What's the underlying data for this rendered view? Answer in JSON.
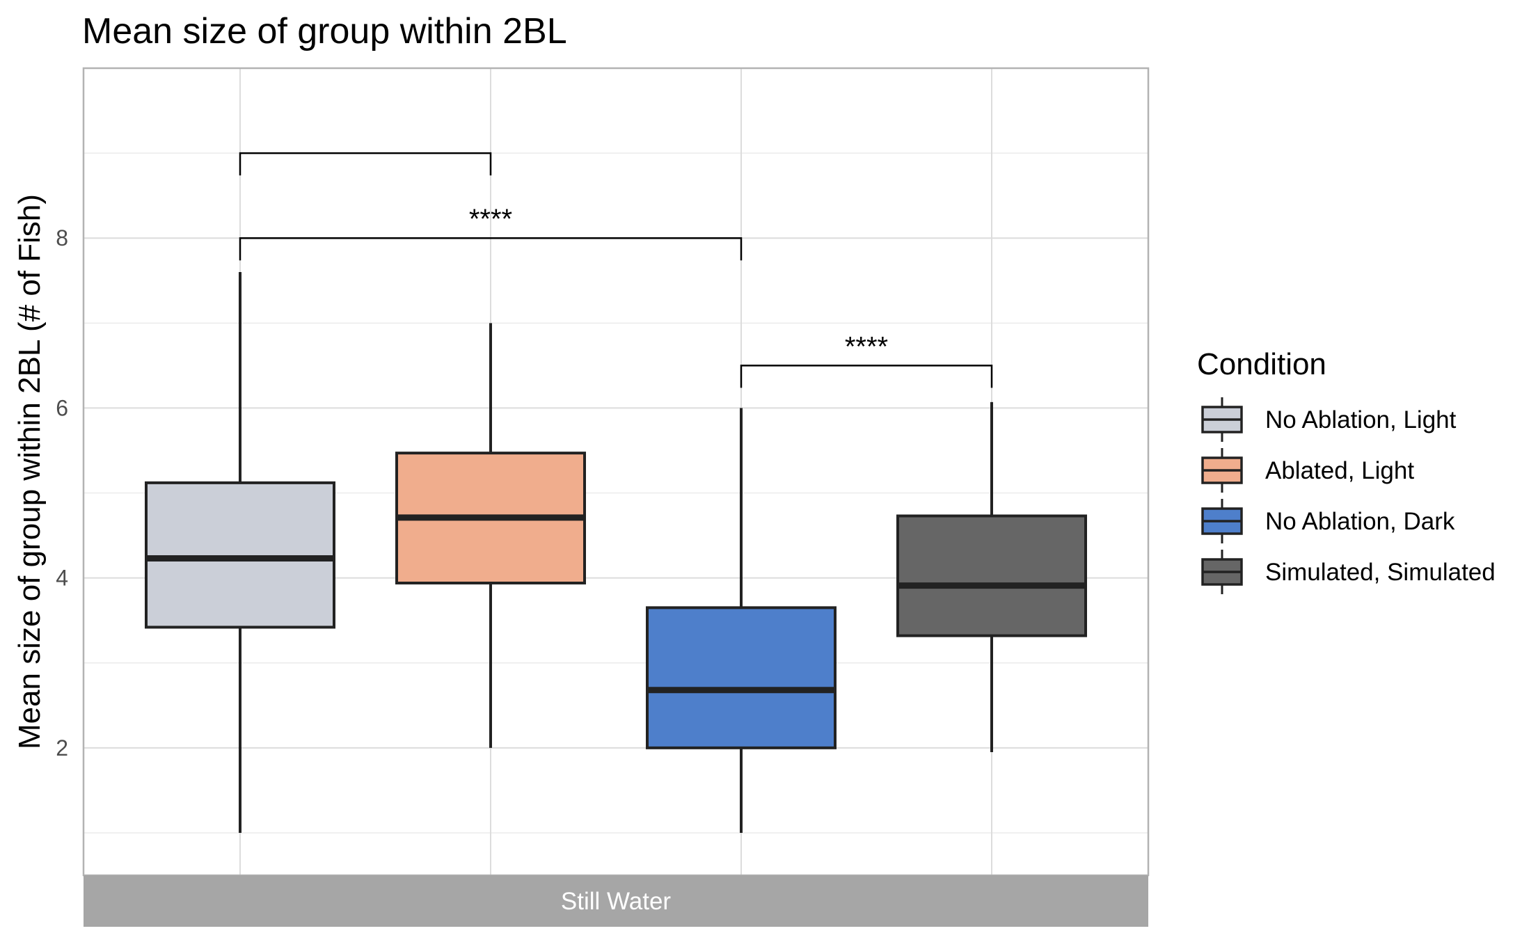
{
  "chart_data": {
    "type": "box",
    "title": "Mean size of group within 2BL",
    "xlabel": "",
    "ylabel": "Mean size of group within 2BL (# of Fish)",
    "facet": "Still Water",
    "ylim": [
      0.5,
      10
    ],
    "yticks": [
      2,
      4,
      6,
      8
    ],
    "grid": true,
    "legend": {
      "title": "Condition",
      "position": "right",
      "entries": [
        "No Ablation, Light",
        "Ablated, Light",
        "No Ablation, Dark",
        "Simulated, Simulated"
      ]
    },
    "series": [
      {
        "name": "No Ablation, Light",
        "color": "#cbcfd8",
        "min": 1.0,
        "q1": 3.42,
        "median": 4.23,
        "q3": 5.12,
        "max": 7.6
      },
      {
        "name": "Ablated, Light",
        "color": "#f0ad8d",
        "min": 2.0,
        "q1": 3.94,
        "median": 4.71,
        "q3": 5.47,
        "max": 7.0
      },
      {
        "name": "No Ablation, Dark",
        "color": "#4e7fcb",
        "min": 1.0,
        "q1": 2.0,
        "median": 2.68,
        "q3": 3.65,
        "max": 6.0
      },
      {
        "name": "Simulated, Simulated",
        "color": "#666666",
        "min": 1.95,
        "q1": 3.32,
        "median": 3.91,
        "q3": 4.73,
        "max": 6.07
      }
    ],
    "comparisons": [
      {
        "from": 0,
        "to": 1,
        "y": 9.0,
        "label": ""
      },
      {
        "from": 0,
        "to": 2,
        "y": 8.0,
        "label": "****"
      },
      {
        "from": 2,
        "to": 3,
        "y": 6.5,
        "label": "****"
      }
    ]
  }
}
